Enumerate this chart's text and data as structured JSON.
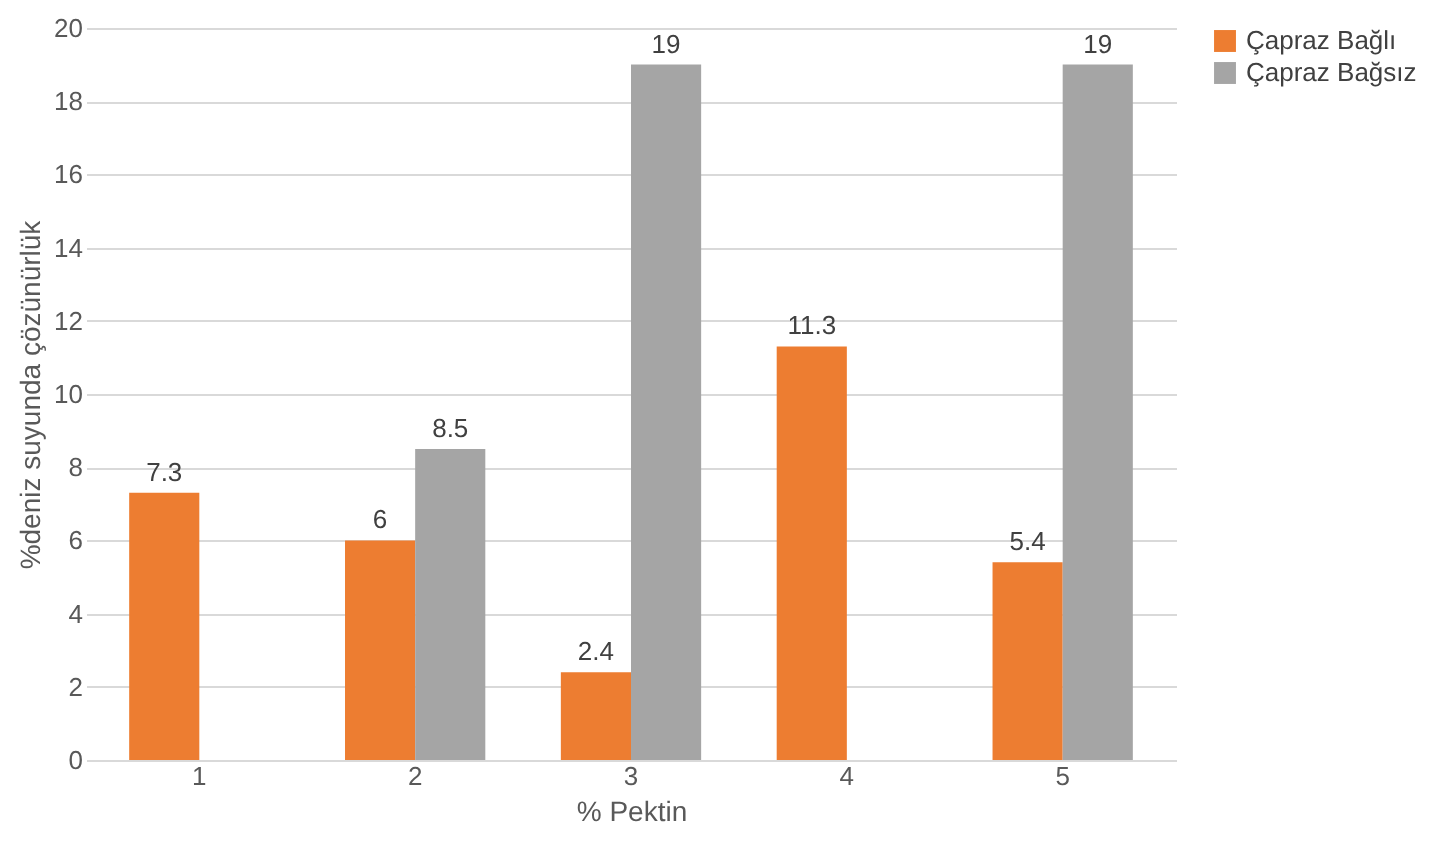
{
  "chart_data": {
    "type": "bar",
    "xlabel": "% Pektin",
    "ylabel": "%deniz suyunda çözünürlük",
    "categories": [
      "1",
      "2",
      "3",
      "4",
      "5"
    ],
    "series": [
      {
        "name": "Çapraz Bağlı",
        "color": "#ed7d31",
        "values": [
          7.3,
          6,
          2.4,
          11.3,
          5.4
        ]
      },
      {
        "name": "Çapraz Bağsız",
        "color": "#a5a5a5",
        "values": [
          null,
          8.5,
          19,
          null,
          19
        ]
      }
    ],
    "ylim": [
      0,
      20
    ],
    "yticks": [
      0,
      2,
      4,
      6,
      8,
      10,
      12,
      14,
      16,
      18,
      20
    ],
    "grid": "y",
    "legend": "right",
    "data_labels": true
  }
}
